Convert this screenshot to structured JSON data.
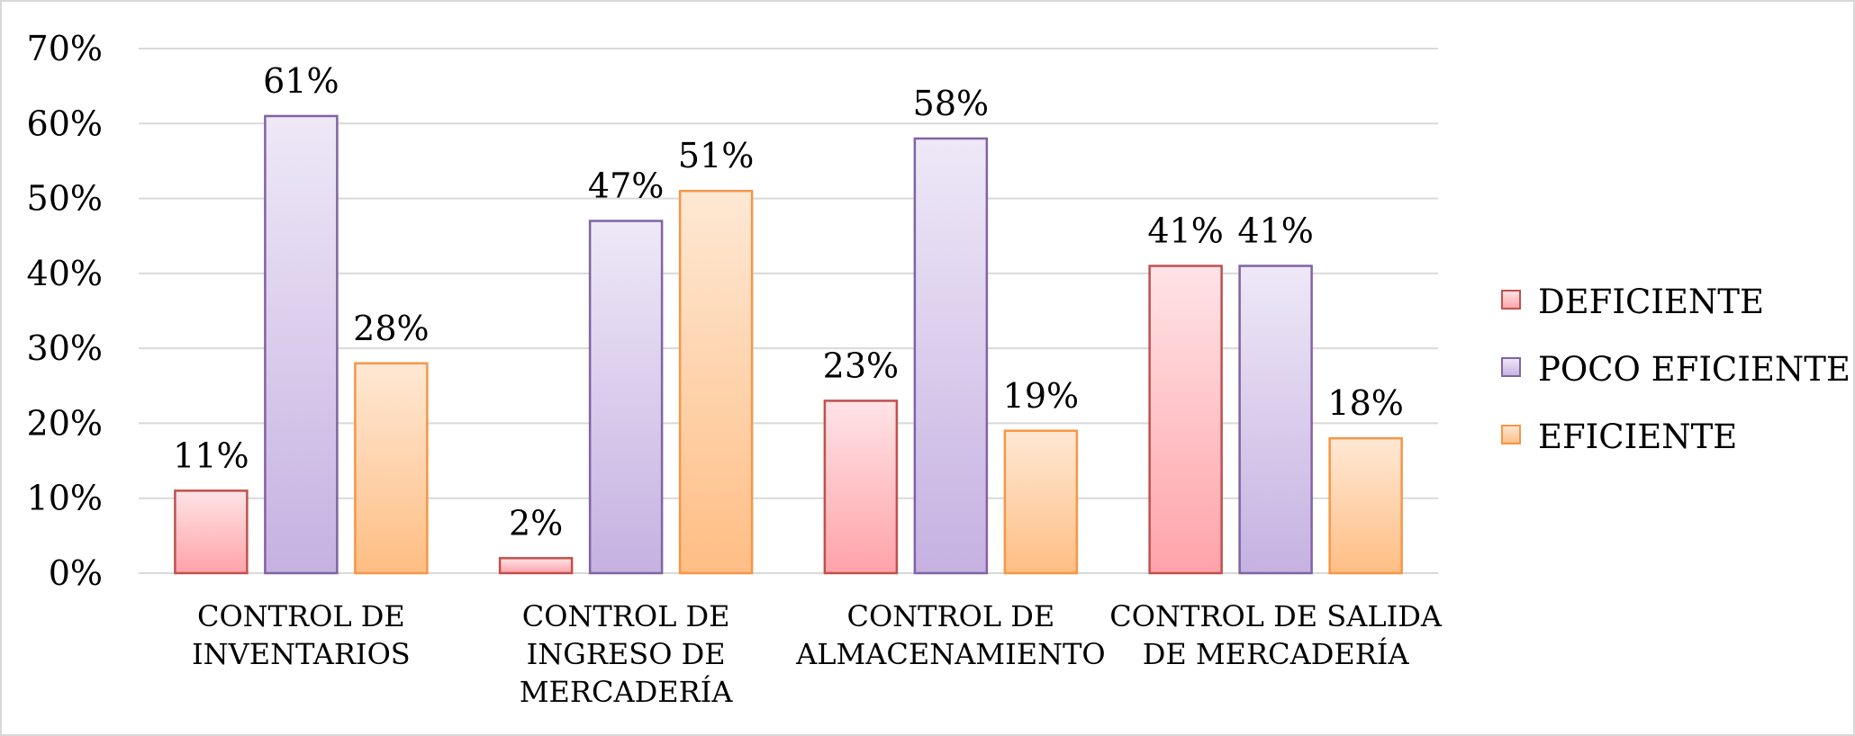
{
  "chart_data": {
    "type": "bar",
    "categories": [
      [
        "CONTROL DE",
        "INVENTARIOS"
      ],
      [
        "CONTROL DE",
        "INGRESO DE",
        "MERCADERÍA"
      ],
      [
        "CONTROL DE",
        "ALMACENAMIENTO"
      ],
      [
        "CONTROL DE SALIDA",
        "DE MERCADERÍA"
      ]
    ],
    "series": [
      {
        "name": "DEFICIENTE",
        "values": [
          11,
          2,
          23,
          41
        ],
        "labels": [
          "11%",
          "2%",
          "23%",
          "41%"
        ],
        "color_top": "#ffe3e6",
        "color_bottom": "#ffa3a9",
        "border": "#c0504d"
      },
      {
        "name": "POCO EFICIENTE",
        "values": [
          61,
          47,
          58,
          41
        ],
        "labels": [
          "61%",
          "47%",
          "58%",
          "41%"
        ],
        "color_top": "#eee8f7",
        "color_bottom": "#c6b1e1",
        "border": "#8064a2"
      },
      {
        "name": "EFICIENTE",
        "values": [
          28,
          51,
          19,
          18
        ],
        "labels": [
          "28%",
          "51%",
          "19%",
          "18%"
        ],
        "color_top": "#fee8d4",
        "color_bottom": "#ffbe84",
        "border": "#f79646"
      }
    ],
    "yticks": [
      "0%",
      "10%",
      "20%",
      "30%",
      "40%",
      "50%",
      "60%",
      "70%"
    ],
    "ylim": [
      0,
      70
    ],
    "ystep": 10,
    "grid": true,
    "gridline_color": "#d9d9d9",
    "legend_position": "right",
    "title": "",
    "xlabel": "",
    "ylabel": ""
  }
}
